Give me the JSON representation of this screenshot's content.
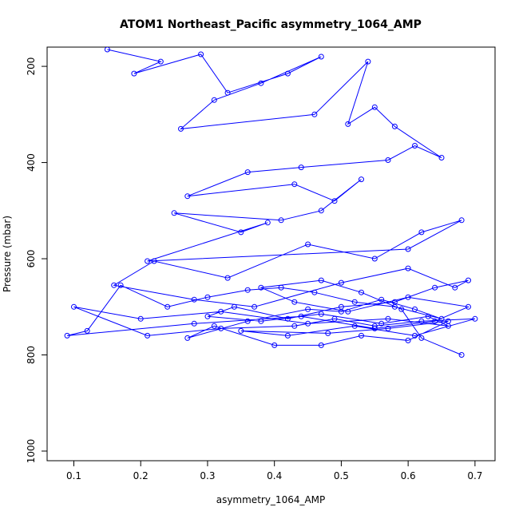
{
  "chart_data": {
    "type": "line",
    "title": "ATOM1 Northeast_Pacific asymmetry_1064_AMP",
    "xlabel": "asymmetry_1064_AMP",
    "ylabel": "Pressure (mbar)",
    "xlim": [
      0.06,
      0.73
    ],
    "ylim": [
      1020,
      160
    ],
    "y_reversed": true,
    "grid": false,
    "legend": "none",
    "line_color": "#0000FF",
    "marker": "open-circle",
    "x_ticks": [
      0.1,
      0.2,
      0.3,
      0.4,
      0.5,
      0.6,
      0.7
    ],
    "x_tick_labels": [
      "0.1",
      "0.2",
      "0.3",
      "0.4",
      "0.5",
      "0.6",
      "0.7"
    ],
    "y_ticks": [
      200,
      400,
      600,
      800,
      1000
    ],
    "y_tick_labels": [
      "200",
      "400",
      "600",
      "800",
      "1000"
    ],
    "series": [
      {
        "x": [
          0.15,
          0.23,
          0.19,
          0.29,
          0.33,
          0.42,
          0.47,
          0.38,
          0.31,
          0.26,
          0.46,
          0.54,
          0.51,
          0.55,
          0.58,
          0.65,
          0.61,
          0.57,
          0.44,
          0.36,
          0.27,
          0.43,
          0.49,
          0.53,
          0.47,
          0.41,
          0.25,
          0.35,
          0.39,
          0.21,
          0.6,
          0.68,
          0.62,
          0.55,
          0.45,
          0.33,
          0.22,
          0.16,
          0.28,
          0.37,
          0.5,
          0.6,
          0.67,
          0.69,
          0.64,
          0.58,
          0.5,
          0.42,
          0.34,
          0.3,
          0.38,
          0.47,
          0.56,
          0.63,
          0.66,
          0.57,
          0.45,
          0.32,
          0.2,
          0.1,
          0.21,
          0.32,
          0.43,
          0.49,
          0.55,
          0.62,
          0.7,
          0.61,
          0.52,
          0.42,
          0.35,
          0.48,
          0.57,
          0.66,
          0.6,
          0.53,
          0.47,
          0.4,
          0.31,
          0.27,
          0.36,
          0.45,
          0.5,
          0.56,
          0.61,
          0.65,
          0.58,
          0.52,
          0.46,
          0.41,
          0.36,
          0.3,
          0.24,
          0.17,
          0.12,
          0.09,
          0.28,
          0.44,
          0.55,
          0.64,
          0.69,
          0.6,
          0.51,
          0.43,
          0.38,
          0.47,
          0.53,
          0.59,
          0.62,
          0.68
        ],
        "y": [
          165,
          190,
          215,
          175,
          255,
          215,
          180,
          235,
          270,
          330,
          300,
          190,
          320,
          285,
          325,
          390,
          365,
          395,
          410,
          420,
          470,
          445,
          480,
          435,
          500,
          520,
          505,
          545,
          525,
          605,
          580,
          520,
          545,
          600,
          570,
          640,
          605,
          655,
          685,
          700,
          650,
          620,
          660,
          645,
          660,
          690,
          700,
          725,
          700,
          720,
          730,
          715,
          735,
          720,
          740,
          725,
          735,
          710,
          725,
          700,
          760,
          745,
          740,
          725,
          740,
          730,
          725,
          760,
          740,
          760,
          750,
          755,
          745,
          730,
          770,
          760,
          780,
          780,
          740,
          765,
          730,
          705,
          710,
          685,
          705,
          725,
          700,
          690,
          670,
          660,
          665,
          680,
          700,
          655,
          750,
          760,
          735,
          720,
          745,
          730,
          700,
          680,
          710,
          690,
          660,
          645,
          670,
          705,
          765,
          800
        ]
      }
    ]
  }
}
